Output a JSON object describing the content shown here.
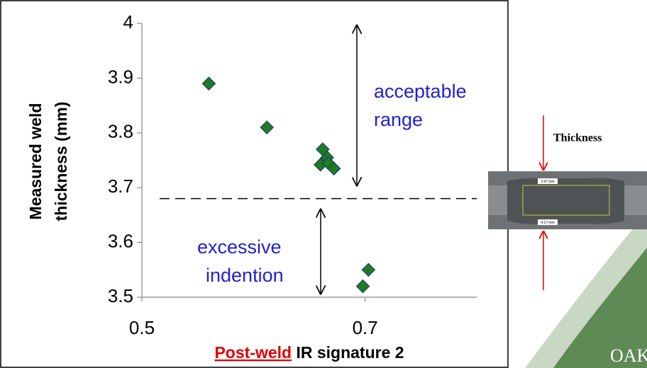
{
  "chart_data": {
    "type": "scatter",
    "x_label": [
      "Post-weld",
      " IR signature 2"
    ],
    "y_label": [
      "Measured weld",
      "thickness (mm)"
    ],
    "x": [
      0.56,
      0.612,
      0.662,
      0.666,
      0.66,
      0.667,
      0.672,
      0.698,
      0.703
    ],
    "values": [
      3.89,
      3.81,
      3.77,
      3.755,
      3.742,
      3.745,
      3.735,
      3.52,
      3.55
    ],
    "color": "#1e7d1e",
    "xlim": [
      0.5,
      0.8
    ],
    "xticks": [
      0.5,
      0.7
    ],
    "ylim": [
      3.5,
      4
    ],
    "yticks": [
      3.5,
      3.6,
      3.7,
      3.8,
      3.9,
      4
    ],
    "threshold": 3.68,
    "annotations": [
      [
        "acceptable",
        "range"
      ],
      [
        "excessive",
        "indention"
      ]
    ]
  },
  "thickness_label": "Thickness",
  "weld_measurements": [
    "3.97 mm",
    "4.17 mm"
  ],
  "logo_text": "OAK"
}
